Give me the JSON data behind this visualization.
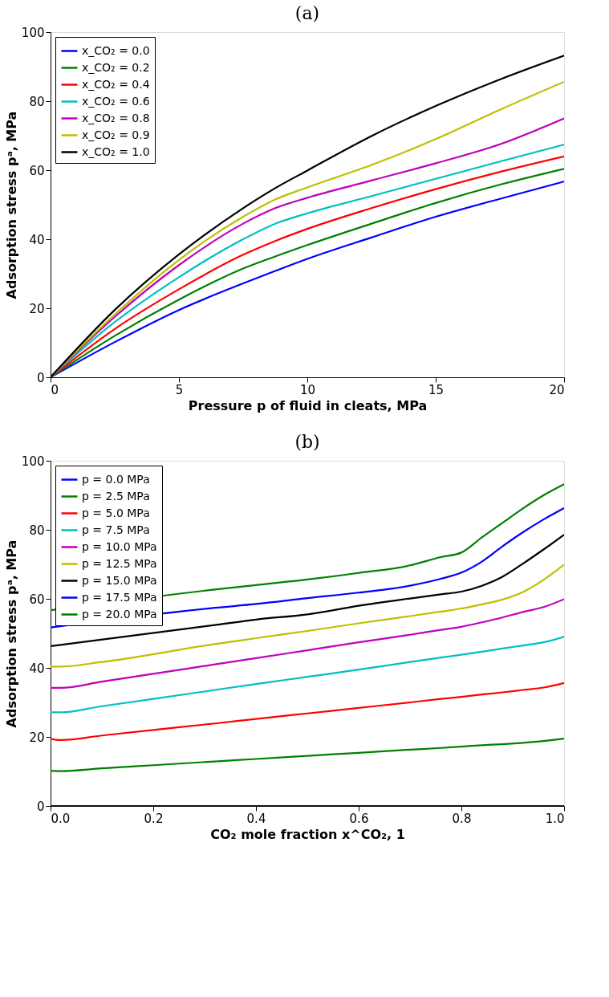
{
  "chart_data": [
    {
      "type": "line",
      "title": "(a)",
      "xlabel": "Pressure p of fluid in cleats, MPa",
      "ylabel": "Adsorption stress pᵃ, MPa",
      "x": [
        0,
        2.5,
        5,
        7.5,
        8.75,
        10,
        12.5,
        15,
        17.5,
        20
      ],
      "xlim": [
        0,
        20
      ],
      "xticks": [
        0,
        5,
        10,
        15,
        20
      ],
      "ylim": [
        0,
        100
      ],
      "yticks": [
        0,
        20,
        40,
        60,
        80,
        100
      ],
      "grid": false,
      "legend": "top left",
      "line_style": "solid",
      "marker": "none",
      "series": [
        {
          "name": "x_CO₂ = 0.0",
          "color": "#0000ff",
          "values": [
            0,
            10.2,
            19.5,
            27.2,
            30.8,
            34.3,
            40.5,
            46.5,
            51.7,
            56.7
          ]
        },
        {
          "name": "x_CO₂ = 0.2",
          "color": "#008000",
          "values": [
            0,
            12.0,
            22.5,
            31.5,
            35.0,
            38.3,
            44.5,
            50.5,
            55.8,
            60.4
          ]
        },
        {
          "name": "x_CO₂ = 0.4",
          "color": "#ff0000",
          "values": [
            0,
            14.0,
            25.5,
            35.5,
            39.5,
            43.0,
            49.0,
            54.5,
            59.5,
            64.0
          ]
        },
        {
          "name": "x_CO₂ = 0.6",
          "color": "#00bfbf",
          "values": [
            0,
            16.0,
            29.0,
            40.0,
            44.5,
            47.5,
            52.5,
            57.5,
            62.5,
            67.4
          ]
        },
        {
          "name": "x_CO₂ = 0.8",
          "color": "#bf00bf",
          "values": [
            0,
            17.5,
            32.5,
            44.5,
            49.0,
            52.0,
            57.0,
            62.0,
            67.5,
            75.0
          ]
        },
        {
          "name": "x_CO₂ = 0.9",
          "color": "#bfbf00",
          "values": [
            0,
            18.2,
            34.0,
            46.5,
            51.5,
            55.0,
            61.5,
            69.0,
            77.5,
            85.6
          ]
        },
        {
          "name": "x_CO₂ = 1.0",
          "color": "#000000",
          "values": [
            0,
            19.5,
            35.6,
            49.0,
            54.8,
            59.9,
            69.9,
            78.6,
            86.3,
            93.2
          ]
        }
      ]
    },
    {
      "type": "line",
      "title": "(b)",
      "xlabel": "CO₂ mole fraction x^CO₂, 1",
      "ylabel": "Adsorption stress pᵃ, MPa",
      "x": [
        0,
        0.02,
        0.1,
        0.2,
        0.32,
        0.4,
        0.5,
        0.6,
        0.7,
        0.76,
        0.8,
        0.84,
        0.88,
        0.92,
        0.96,
        1.0
      ],
      "xlim": [
        0,
        1
      ],
      "xticks": [
        {
          "value": 0,
          "label": "0.0"
        },
        0.2,
        0.4,
        0.6,
        0.8,
        {
          "value": 1,
          "label": "1.0"
        }
      ],
      "ylim": [
        0,
        100
      ],
      "yticks": [
        0,
        20,
        40,
        60,
        80,
        100
      ],
      "grid": false,
      "legend": "top left",
      "line_style": "solid",
      "marker": "none",
      "series": [
        {
          "name": "p = 0.0 MPa",
          "color": "#0000ff",
          "values": [
            0,
            0,
            0,
            0,
            0,
            0,
            0,
            0,
            0,
            0,
            0,
            0,
            0,
            0,
            0,
            0
          ]
        },
        {
          "name": "p = 2.5 MPa",
          "color": "#008000",
          "values": [
            10.2,
            10.1,
            10.9,
            11.8,
            12.9,
            13.6,
            14.5,
            15.4,
            16.3,
            16.8,
            17.2,
            17.6,
            17.9,
            18.3,
            18.8,
            19.5
          ]
        },
        {
          "name": "p = 5.0 MPa",
          "color": "#ff0000",
          "values": [
            19.4,
            19.1,
            20.4,
            22.0,
            23.9,
            25.2,
            26.8,
            28.4,
            30.0,
            31.0,
            31.6,
            32.3,
            32.9,
            33.6,
            34.3,
            35.6
          ]
        },
        {
          "name": "p = 7.5 MPa",
          "color": "#00bfbf",
          "values": [
            27.2,
            27.1,
            28.9,
            31.0,
            33.6,
            35.3,
            37.4,
            39.5,
            41.7,
            43.0,
            43.8,
            44.7,
            45.6,
            46.5,
            47.4,
            49.0
          ]
        },
        {
          "name": "p = 10.0 MPa",
          "color": "#bf00bf",
          "values": [
            34.2,
            34.2,
            36.0,
            38.3,
            41.0,
            42.8,
            45.1,
            47.4,
            49.6,
            51.0,
            51.9,
            53.2,
            54.6,
            56.2,
            57.6,
            59.9
          ]
        },
        {
          "name": "p = 12.5 MPa",
          "color": "#bfbf00",
          "x": [
            0,
            0.02,
            0.1,
            0.32,
            0.4,
            0.5,
            0.6,
            0.7,
            0.76,
            0.8,
            0.84,
            0.88,
            0.92,
            0.96,
            1.0
          ],
          "values": [
            40.4,
            40.4,
            41.7,
            46.9,
            48.6,
            50.7,
            52.9,
            55.0,
            56.3,
            57.2,
            58.4,
            59.8,
            62.0,
            65.5,
            69.9
          ]
        },
        {
          "name": "p = 15.0 MPa",
          "color": "#000000",
          "x": [
            0,
            0.32,
            0.4,
            0.5,
            0.6,
            0.7,
            0.76,
            0.8,
            0.84,
            0.88,
            0.92,
            0.96,
            1.0
          ],
          "values": [
            46.3,
            52.4,
            54.0,
            55.5,
            58.0,
            60.1,
            61.3,
            62.1,
            63.8,
            66.4,
            70.2,
            74.3,
            78.6
          ]
        },
        {
          "name": "p = 17.5 MPa",
          "color": "#0000ff",
          "x": [
            0,
            0.32,
            0.4,
            0.5,
            0.6,
            0.7,
            0.76,
            0.8,
            0.84,
            0.88,
            0.92,
            0.96,
            1.0
          ],
          "values": [
            51.7,
            57.4,
            58.5,
            60.2,
            61.8,
            63.8,
            65.8,
            67.6,
            70.8,
            75.2,
            79.3,
            83.0,
            86.3
          ]
        },
        {
          "name": "p = 20.0 MPa",
          "color": "#008000",
          "x": [
            0,
            0.32,
            0.4,
            0.5,
            0.6,
            0.7,
            0.76,
            0.8,
            0.84,
            0.88,
            0.92,
            0.96,
            1.0
          ],
          "values": [
            56.7,
            62.7,
            64.0,
            65.6,
            67.5,
            69.7,
            72.1,
            73.4,
            77.8,
            82.0,
            86.2,
            90.0,
            93.2
          ]
        }
      ]
    }
  ]
}
